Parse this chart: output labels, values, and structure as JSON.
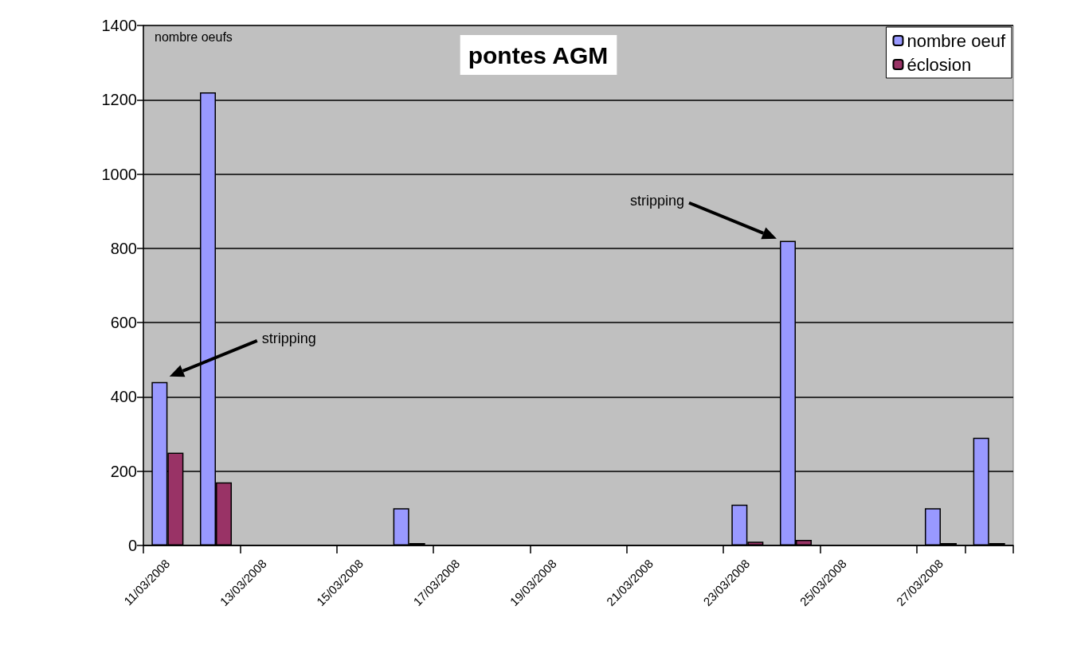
{
  "chart_data": {
    "type": "bar",
    "title": "pontes AGM",
    "ylabel": "nombre oeufs",
    "categories": [
      "11/03/2008",
      null,
      "13/03/2008",
      null,
      "15/03/2008",
      null,
      "17/03/2008",
      null,
      "19/03/2008",
      null,
      "21/03/2008",
      null,
      "23/03/2008",
      null,
      "25/03/2008",
      null,
      "27/03/2008",
      null
    ],
    "series": [
      {
        "name": "nombre oeuf",
        "color": "#9999ff",
        "values": [
          440,
          1220,
          null,
          null,
          null,
          100,
          null,
          null,
          null,
          null,
          null,
          null,
          110,
          820,
          null,
          null,
          100,
          290
        ]
      },
      {
        "name": "éclosion",
        "color": "#993366",
        "values": [
          250,
          170,
          null,
          null,
          null,
          0,
          null,
          null,
          null,
          null,
          null,
          null,
          10,
          15,
          null,
          null,
          0,
          0
        ]
      }
    ],
    "ylim": [
      0,
      1400
    ],
    "yticks": [
      0,
      200,
      400,
      600,
      800,
      1000,
      1200,
      1400
    ],
    "grid": "y",
    "legend": "top right",
    "annotations": [
      "stripping",
      "stripping"
    ]
  }
}
